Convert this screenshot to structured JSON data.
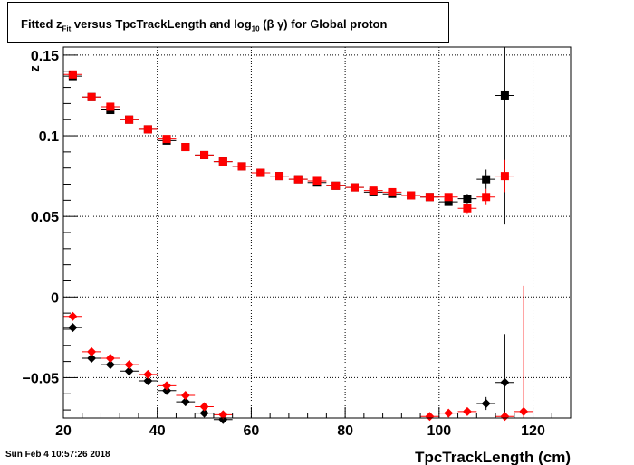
{
  "title": {
    "p1": "Fitted  z",
    "sub1": "Fit",
    "p2": "  versus TpcTrackLength and log",
    "sub2": "10",
    "p3": "(β γ) for Global proton"
  },
  "timestamp": "Sun Feb  4 10:57:26 2018",
  "colors": {
    "series_black": "#000000",
    "series_red": "#ff0000"
  },
  "chart_data": {
    "type": "scatter",
    "xlabel": "TpcTrackLength (cm)",
    "ylabel": "z",
    "xlim": [
      20,
      128
    ],
    "ylim": [
      -0.075,
      0.155
    ],
    "grid": true,
    "x_ticks": [
      20,
      40,
      60,
      80,
      100,
      120
    ],
    "x_tick_labels": [
      "20",
      "40",
      "60",
      "80",
      "100",
      "120"
    ],
    "y_ticks": [
      -0.05,
      0,
      0.05,
      0.1,
      0.15
    ],
    "y_tick_labels": [
      "−0.05",
      "0",
      "0.05",
      "0.1",
      "0.15"
    ],
    "x_bin_halfwidth": 2,
    "series": [
      {
        "marker": "square",
        "color": "#000000",
        "points": [
          [
            22,
            0.137
          ],
          [
            26,
            0.124
          ],
          [
            30,
            0.116
          ],
          [
            34,
            0.11
          ],
          [
            38,
            0.104
          ],
          [
            42,
            0.097
          ],
          [
            46,
            0.093
          ],
          [
            50,
            0.088
          ],
          [
            54,
            0.084
          ],
          [
            58,
            0.081
          ],
          [
            62,
            0.077
          ],
          [
            66,
            0.075
          ],
          [
            70,
            0.073
          ],
          [
            74,
            0.071
          ],
          [
            78,
            0.069
          ],
          [
            82,
            0.068
          ],
          [
            86,
            0.065
          ],
          [
            90,
            0.064
          ],
          [
            94,
            0.063
          ],
          [
            98,
            0.062
          ],
          [
            102,
            0.059
          ],
          [
            106,
            0.061
          ],
          [
            110,
            0.073
          ],
          [
            114,
            0.125
          ]
        ],
        "errors": [
          0.001,
          0.001,
          0.001,
          0.001,
          0.001,
          0.001,
          0.001,
          0.001,
          0.001,
          0.001,
          0.001,
          0.001,
          0.001,
          0.001,
          0.001,
          0.001,
          0.001,
          0.001,
          0.001,
          0.001,
          0.002,
          0.003,
          0.006,
          0.08
        ]
      },
      {
        "marker": "square",
        "color": "#ff0000",
        "points": [
          [
            22,
            0.138
          ],
          [
            26,
            0.124
          ],
          [
            30,
            0.118
          ],
          [
            34,
            0.11
          ],
          [
            38,
            0.104
          ],
          [
            42,
            0.098
          ],
          [
            46,
            0.093
          ],
          [
            50,
            0.088
          ],
          [
            54,
            0.084
          ],
          [
            58,
            0.081
          ],
          [
            62,
            0.077
          ],
          [
            66,
            0.075
          ],
          [
            70,
            0.073
          ],
          [
            74,
            0.072
          ],
          [
            78,
            0.069
          ],
          [
            82,
            0.068
          ],
          [
            86,
            0.066
          ],
          [
            90,
            0.065
          ],
          [
            94,
            0.063
          ],
          [
            98,
            0.062
          ],
          [
            102,
            0.062
          ],
          [
            106,
            0.055
          ],
          [
            110,
            0.062
          ],
          [
            114,
            0.075
          ]
        ],
        "errors": [
          0.001,
          0.001,
          0.001,
          0.001,
          0.001,
          0.001,
          0.001,
          0.001,
          0.001,
          0.001,
          0.001,
          0.001,
          0.001,
          0.001,
          0.001,
          0.001,
          0.001,
          0.001,
          0.001,
          0.001,
          0.002,
          0.003,
          0.005,
          0.01
        ]
      },
      {
        "marker": "diamond",
        "color": "#000000",
        "points": [
          [
            22,
            -0.019
          ],
          [
            26,
            -0.038
          ],
          [
            30,
            -0.042
          ],
          [
            34,
            -0.046
          ],
          [
            38,
            -0.052
          ],
          [
            42,
            -0.058
          ],
          [
            46,
            -0.065
          ],
          [
            50,
            -0.072
          ],
          [
            54,
            -0.076
          ],
          [
            110,
            -0.066
          ],
          [
            114,
            -0.053
          ]
        ],
        "errors": [
          0.001,
          0.001,
          0.001,
          0.001,
          0.001,
          0.001,
          0.001,
          0.001,
          0.001,
          0.004,
          0.03
        ]
      },
      {
        "marker": "diamond",
        "color": "#ff0000",
        "points": [
          [
            22,
            -0.012
          ],
          [
            26,
            -0.034
          ],
          [
            30,
            -0.038
          ],
          [
            34,
            -0.042
          ],
          [
            38,
            -0.048
          ],
          [
            42,
            -0.055
          ],
          [
            46,
            -0.061
          ],
          [
            50,
            -0.068
          ],
          [
            54,
            -0.073
          ],
          [
            98,
            -0.074
          ],
          [
            102,
            -0.072
          ],
          [
            106,
            -0.071
          ],
          [
            114,
            -0.074
          ],
          [
            118,
            -0.071
          ]
        ],
        "errors": [
          0.001,
          0.001,
          0.001,
          0.001,
          0.001,
          0.001,
          0.001,
          0.001,
          0.001,
          0.001,
          0.001,
          0.001,
          0.002,
          0.078
        ]
      }
    ]
  }
}
